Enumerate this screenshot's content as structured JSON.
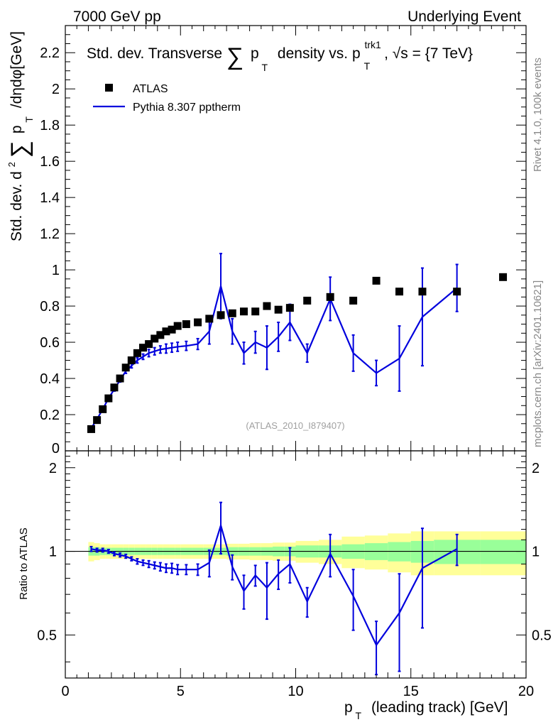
{
  "header": {
    "left": "7000 GeV pp",
    "right": "Underlying Event"
  },
  "side_labels": {
    "rivet": "Rivet 4.1.0,  100k events",
    "mcplots": "mcplots.cern.ch [arXiv:2401.10621]"
  },
  "chart_data": {
    "type": "line",
    "title_parts": {
      "a": "Std. dev. Transverse",
      "sum": "∑",
      "p": "p",
      "t": "T",
      "b": "density vs. p",
      "trk": "trk1",
      "t2": "T",
      "c": ", √s = {7 TeV}"
    },
    "ylabel_parts": {
      "a": "Std. dev. d",
      "sup": "2",
      "sum": "∑",
      "p": "p",
      "t": "T",
      "b": "/dηdφ[GeV]"
    },
    "xlabel_parts": {
      "p": "p",
      "t": "T",
      "rest": "(leading track) [GeV]"
    },
    "ratio_ylabel": "Ratio to ATLAS",
    "watermark": "(ATLAS_2010_I879407)",
    "xlim": [
      0,
      20
    ],
    "ylim": [
      0,
      2.35
    ],
    "ratio_ylim": [
      0.35,
      2.3
    ],
    "x_ticks": [
      0,
      5,
      10,
      15,
      20
    ],
    "x_tick_labels": [
      "0",
      "5",
      "10",
      "15",
      "20"
    ],
    "y_ticks": [
      0.2,
      0.4,
      0.6,
      0.8,
      1,
      1.2,
      1.4,
      1.6,
      1.8,
      2,
      2.2
    ],
    "y_tick_labels": [
      "0.2",
      "0.4",
      "0.6",
      "0.8",
      "1",
      "1.2",
      "1.4",
      "1.6",
      "1.8",
      "2",
      "2.2"
    ],
    "y_zero_label": "0",
    "ratio_ticks": [
      0.5,
      1,
      2
    ],
    "ratio_tick_labels": [
      "0.5",
      "1",
      "2"
    ],
    "legend": [
      {
        "label": "ATLAS",
        "marker": "square",
        "color": "#000000"
      },
      {
        "label": "Pythia 8.307 pptherm",
        "marker": "line",
        "color": "#0000dd"
      }
    ],
    "series": [
      {
        "name": "ATLAS",
        "x": [
          1.125,
          1.375,
          1.625,
          1.875,
          2.125,
          2.375,
          2.625,
          2.875,
          3.125,
          3.375,
          3.625,
          3.875,
          4.125,
          4.375,
          4.625,
          4.875,
          5.25,
          5.75,
          6.25,
          6.75,
          7.25,
          7.75,
          8.25,
          8.75,
          9.25,
          9.75,
          10.5,
          11.5,
          12.5,
          13.5,
          14.5,
          15.5,
          17.0,
          19.0
        ],
        "y": [
          0.12,
          0.17,
          0.23,
          0.29,
          0.35,
          0.4,
          0.46,
          0.5,
          0.54,
          0.57,
          0.59,
          0.62,
          0.64,
          0.66,
          0.67,
          0.69,
          0.7,
          0.71,
          0.73,
          0.75,
          0.76,
          0.77,
          0.77,
          0.8,
          0.78,
          0.79,
          0.83,
          0.85,
          0.83,
          0.94,
          0.88,
          0.88,
          0.88,
          0.96
        ],
        "band_stat": [
          0.035,
          0.035,
          0.03,
          0.03,
          0.03,
          0.03,
          0.03,
          0.03,
          0.03,
          0.03,
          0.03,
          0.03,
          0.03,
          0.03,
          0.03,
          0.03,
          0.03,
          0.03,
          0.03,
          0.03,
          0.035,
          0.035,
          0.035,
          0.035,
          0.04,
          0.04,
          0.05,
          0.05,
          0.06,
          0.07,
          0.08,
          0.09,
          0.1,
          0.1
        ],
        "band_syst": [
          0.08,
          0.07,
          0.06,
          0.06,
          0.06,
          0.06,
          0.06,
          0.06,
          0.06,
          0.06,
          0.06,
          0.06,
          0.06,
          0.06,
          0.06,
          0.06,
          0.06,
          0.06,
          0.06,
          0.06,
          0.065,
          0.065,
          0.07,
          0.07,
          0.075,
          0.075,
          0.09,
          0.1,
          0.13,
          0.14,
          0.16,
          0.18,
          0.18,
          0.18
        ],
        "bins": [
          [
            1.0,
            1.25
          ],
          [
            1.25,
            1.5
          ],
          [
            1.5,
            1.75
          ],
          [
            1.75,
            2.0
          ],
          [
            2.0,
            2.25
          ],
          [
            2.25,
            2.5
          ],
          [
            2.5,
            2.75
          ],
          [
            2.75,
            3.0
          ],
          [
            3.0,
            3.25
          ],
          [
            3.25,
            3.5
          ],
          [
            3.5,
            3.75
          ],
          [
            3.75,
            4.0
          ],
          [
            4.0,
            4.25
          ],
          [
            4.25,
            4.5
          ],
          [
            4.5,
            4.75
          ],
          [
            4.75,
            5.0
          ],
          [
            5.0,
            5.5
          ],
          [
            5.5,
            6.0
          ],
          [
            6.0,
            6.5
          ],
          [
            6.5,
            7.0
          ],
          [
            7.0,
            7.5
          ],
          [
            7.5,
            8.0
          ],
          [
            8.0,
            8.5
          ],
          [
            8.5,
            9.0
          ],
          [
            9.0,
            9.5
          ],
          [
            9.5,
            10.0
          ],
          [
            10.0,
            11.0
          ],
          [
            11.0,
            12.0
          ],
          [
            12.0,
            13.0
          ],
          [
            13.0,
            14.0
          ],
          [
            14.0,
            15.0
          ],
          [
            15.0,
            16.0
          ],
          [
            16.0,
            18.0
          ],
          [
            18.0,
            20.0
          ]
        ]
      },
      {
        "name": "Pythia 8.307 pptherm",
        "x": [
          1.125,
          1.375,
          1.625,
          1.875,
          2.125,
          2.375,
          2.625,
          2.875,
          3.125,
          3.375,
          3.625,
          3.875,
          4.125,
          4.375,
          4.625,
          4.875,
          5.25,
          5.75,
          6.25,
          6.75,
          7.25,
          7.75,
          8.25,
          8.75,
          9.25,
          9.75,
          10.5,
          11.5,
          12.5,
          13.5,
          14.5,
          15.5,
          17.0
        ],
        "y": [
          0.125,
          0.175,
          0.23,
          0.29,
          0.34,
          0.39,
          0.44,
          0.47,
          0.5,
          0.52,
          0.54,
          0.55,
          0.56,
          0.565,
          0.57,
          0.575,
          0.58,
          0.59,
          0.66,
          0.91,
          0.66,
          0.54,
          0.6,
          0.57,
          0.63,
          0.71,
          0.54,
          0.84,
          0.54,
          0.43,
          0.51,
          0.74,
          0.9
        ],
        "yerr": [
          0.008,
          0.008,
          0.008,
          0.008,
          0.01,
          0.01,
          0.012,
          0.012,
          0.015,
          0.015,
          0.02,
          0.02,
          0.02,
          0.025,
          0.025,
          0.025,
          0.025,
          0.03,
          0.07,
          0.18,
          0.07,
          0.06,
          0.06,
          0.12,
          0.08,
          0.1,
          0.05,
          0.12,
          0.1,
          0.07,
          0.18,
          0.27,
          0.13
        ],
        "ratio": [
          1.02,
          1.01,
          1.01,
          1.0,
          0.98,
          0.97,
          0.96,
          0.94,
          0.92,
          0.91,
          0.9,
          0.89,
          0.88,
          0.87,
          0.87,
          0.86,
          0.86,
          0.86,
          0.91,
          1.24,
          0.88,
          0.72,
          0.82,
          0.74,
          0.83,
          0.9,
          0.66,
          0.98,
          0.69,
          0.46,
          0.6,
          0.87,
          1.02
        ],
        "ratio_err": [
          0.02,
          0.015,
          0.015,
          0.015,
          0.015,
          0.015,
          0.015,
          0.015,
          0.02,
          0.02,
          0.025,
          0.025,
          0.03,
          0.03,
          0.035,
          0.035,
          0.035,
          0.04,
          0.1,
          0.26,
          0.09,
          0.1,
          0.07,
          0.17,
          0.1,
          0.13,
          0.08,
          0.17,
          0.17,
          0.1,
          0.23,
          0.34,
          0.13
        ]
      }
    ]
  }
}
